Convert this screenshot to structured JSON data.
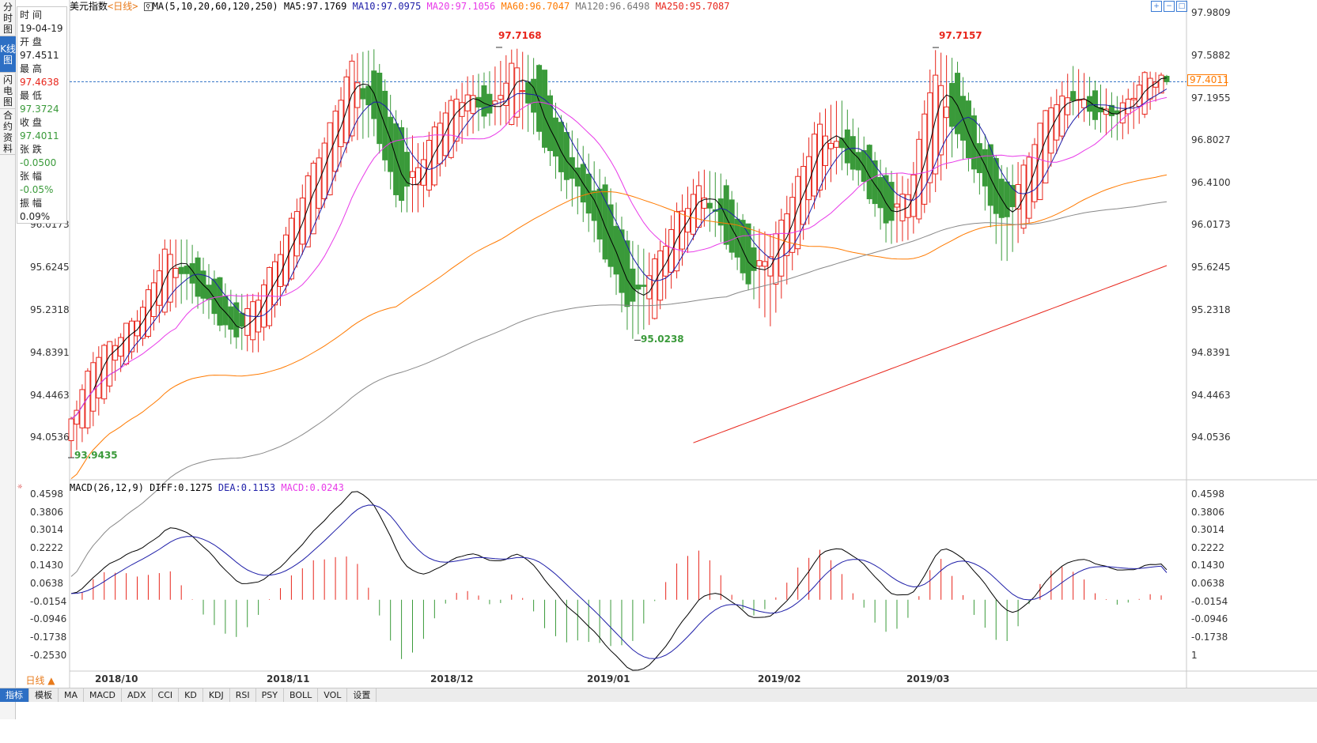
{
  "side_tabs": [
    {
      "label": "分时图",
      "active": false
    },
    {
      "label": "K线图",
      "active": true
    },
    {
      "label": "闪电图",
      "active": false
    },
    {
      "label": "合约资料",
      "active": false
    }
  ],
  "info_panel": {
    "time_label": "时 间",
    "time_value": "19-04-19",
    "open_label": "开 盘",
    "open_value": "97.4511",
    "high_label": "最 高",
    "high_value": "97.4638",
    "low_label": "最 低",
    "low_value": "97.3724",
    "close_label": "收 盘",
    "close_value": "97.4011",
    "change_label": "张 跌",
    "change_value": "-0.0500",
    "change_pct_label": "张 幅",
    "change_pct_value": "-0.05%",
    "amplitude_label": "振 幅",
    "amplitude_value": "0.09%"
  },
  "legend": {
    "name": "美元指数",
    "period": "<日线>",
    "ma_params": "MA(5,10,20,60,120,250)",
    "ma5": "MA5:97.1769",
    "ma10": "MA10:97.0975",
    "ma20": "MA20:97.1056",
    "ma60": "MA60:96.7047",
    "ma120": "MA120:96.6498",
    "ma250": "MA250:95.7087"
  },
  "macd_legend": {
    "params": "MACD(26,12,9)",
    "diff": "DIFF:0.1275",
    "dea": "DEA:0.1153",
    "macd": "MACD:0.0243"
  },
  "price_axis": {
    "ticks": [
      "97.9809",
      "97.5882",
      "97.1955",
      "96.8027",
      "96.4100",
      "96.0173",
      "95.6245",
      "95.2318",
      "94.8391",
      "94.4463",
      "94.0536"
    ],
    "left_ticks": [
      "96.0173",
      "95.6245",
      "95.2318",
      "94.8391",
      "94.4463",
      "94.0536"
    ],
    "last_price": "97.4011"
  },
  "macd_axis": {
    "ticks": [
      "0.4598",
      "0.3806",
      "0.3014",
      "0.2222",
      "0.1430",
      "0.0638",
      "-0.0154",
      "-0.0946",
      "-0.1738",
      "-0.2530"
    ],
    "right_ticks": [
      "0.4598",
      "0.3806",
      "0.3014",
      "0.2222",
      "0.1430",
      "0.0638",
      "-0.0154",
      "-0.0946",
      "-0.1738"
    ],
    "unit_label": "1"
  },
  "extremes": {
    "high1": "97.7168",
    "high2": "97.7157",
    "low1": "95.0238",
    "low2": "93.9435"
  },
  "x_axis": {
    "labels": [
      "2018/10",
      "2018/11",
      "2018/12",
      "2019/01",
      "2019/02",
      "2019/03"
    ]
  },
  "bottom_bar": {
    "period": "日线 ▲",
    "tabs": [
      "指标",
      "模板",
      "MA",
      "MACD",
      "ADX",
      "CCI",
      "KD",
      "KDJ",
      "RSI",
      "PSY",
      "BOLL",
      "VOL",
      "设置"
    ],
    "active": "指标"
  },
  "colors": {
    "up": "#e8261c",
    "down": "#3a9a3a",
    "ma5": "#000000",
    "ma10": "#1e1ea8",
    "ma20": "#e83ae8",
    "ma60": "#ff7a00",
    "ma120": "#888888",
    "ma250": "#e8261c",
    "grid": "#e0e0e0"
  },
  "chart_data": {
    "type": "candlestick",
    "title": "美元指数",
    "period": "日线",
    "ylim_price": [
      93.9,
      98.0
    ],
    "ylim_macd": [
      -0.3,
      0.48
    ],
    "dates_range": [
      "2018-09-20",
      "2019-04-19"
    ],
    "ohlc_sampled": [
      [
        94.1,
        94.32,
        93.94,
        94.3
      ],
      [
        94.3,
        94.95,
        94.25,
        94.9
      ],
      [
        94.88,
        95.05,
        94.7,
        95.0
      ],
      [
        95.0,
        95.35,
        94.95,
        95.3
      ],
      [
        95.3,
        95.95,
        95.25,
        95.85
      ],
      [
        95.85,
        95.95,
        95.4,
        95.55
      ],
      [
        95.55,
        95.7,
        95.2,
        95.35
      ],
      [
        95.35,
        95.45,
        94.95,
        95.05
      ],
      [
        95.05,
        95.45,
        94.9,
        95.4
      ],
      [
        95.4,
        95.95,
        95.35,
        95.9
      ],
      [
        95.9,
        96.5,
        95.85,
        96.4
      ],
      [
        96.4,
        96.95,
        96.3,
        96.9
      ],
      [
        96.9,
        97.65,
        96.85,
        97.6
      ],
      [
        97.6,
        97.7,
        96.9,
        97.0
      ],
      [
        97.0,
        97.1,
        96.2,
        96.3
      ],
      [
        96.3,
        96.8,
        96.2,
        96.7
      ],
      [
        96.7,
        97.2,
        96.6,
        97.1
      ],
      [
        97.1,
        97.45,
        96.9,
        97.3
      ],
      [
        97.3,
        97.5,
        97.0,
        97.1
      ],
      [
        97.1,
        97.72,
        97.0,
        97.55
      ],
      [
        97.55,
        97.6,
        96.9,
        97.0
      ],
      [
        97.0,
        97.1,
        96.4,
        96.6
      ],
      [
        96.6,
        96.8,
        96.1,
        96.3
      ],
      [
        96.3,
        96.5,
        95.7,
        95.8
      ],
      [
        95.8,
        95.95,
        95.02,
        95.3
      ],
      [
        95.3,
        95.8,
        95.2,
        95.7
      ],
      [
        95.7,
        96.3,
        95.6,
        96.2
      ],
      [
        96.2,
        96.6,
        96.1,
        96.4
      ],
      [
        96.4,
        96.55,
        95.9,
        96.0
      ],
      [
        96.0,
        96.1,
        95.5,
        95.6
      ],
      [
        95.6,
        96.0,
        95.15,
        95.8
      ],
      [
        95.8,
        96.5,
        95.7,
        96.4
      ],
      [
        96.4,
        97.1,
        96.3,
        97.0
      ],
      [
        97.0,
        97.25,
        96.6,
        96.75
      ],
      [
        96.75,
        96.9,
        96.4,
        96.5
      ],
      [
        96.5,
        96.6,
        95.9,
        96.1
      ],
      [
        96.1,
        96.5,
        95.95,
        96.4
      ],
      [
        96.4,
        97.7,
        96.35,
        97.55
      ],
      [
        97.55,
        97.6,
        96.8,
        96.9
      ],
      [
        96.9,
        97.0,
        96.35,
        96.5
      ],
      [
        96.5,
        96.6,
        95.7,
        96.1
      ],
      [
        96.1,
        96.7,
        96.05,
        96.65
      ],
      [
        96.65,
        97.25,
        96.6,
        97.2
      ],
      [
        97.2,
        97.55,
        97.1,
        97.3
      ],
      [
        97.3,
        97.4,
        96.95,
        97.05
      ],
      [
        97.05,
        97.25,
        96.85,
        97.15
      ],
      [
        97.15,
        97.5,
        97.05,
        97.45
      ],
      [
        97.45,
        97.48,
        97.37,
        97.4
      ]
    ],
    "ma250_start_date": "2019-01-21",
    "macd_diff_range": [
      -0.3,
      0.46
    ],
    "macd_dea_range": [
      -0.2,
      0.38
    ],
    "series": [
      {
        "name": "MA5",
        "last": 97.1769
      },
      {
        "name": "MA10",
        "last": 97.0975
      },
      {
        "name": "MA20",
        "last": 97.1056
      },
      {
        "name": "MA60",
        "last": 96.7047
      },
      {
        "name": "MA120",
        "last": 96.6498
      },
      {
        "name": "MA250",
        "last": 95.7087
      }
    ]
  }
}
